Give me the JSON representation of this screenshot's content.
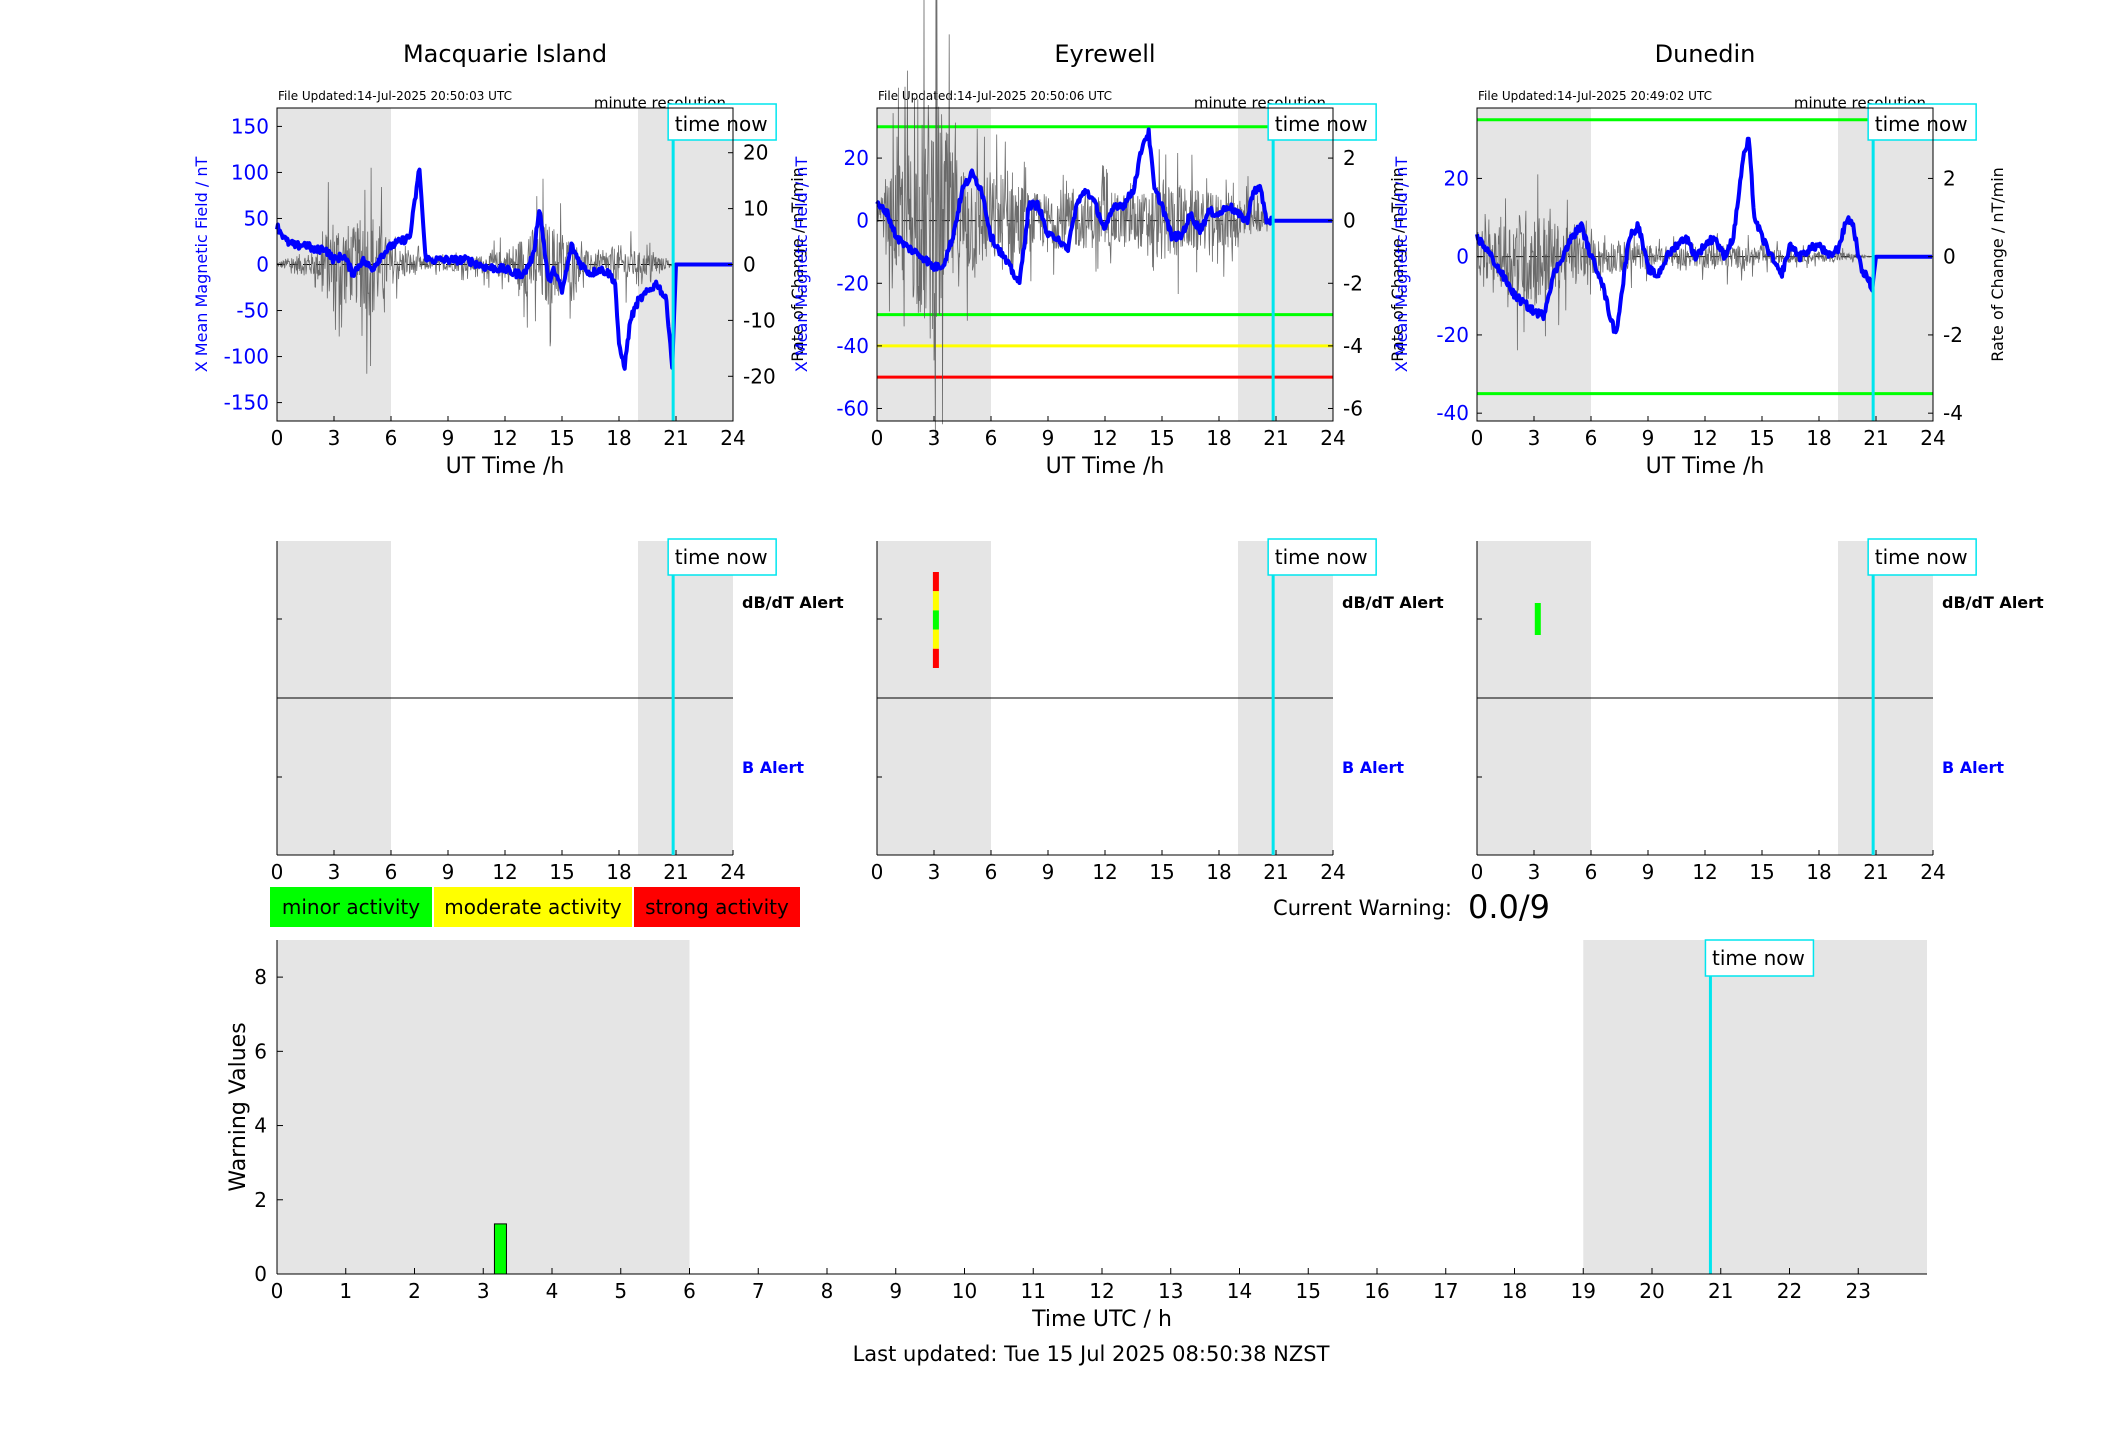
{
  "colors": {
    "x_line": "#0000ff",
    "rate_line": "#555555",
    "now_line": "#00e5ee",
    "shade": "#e5e5e5",
    "minor": "#00ff00",
    "moderate": "#ffff00",
    "strong": "#ff0000",
    "alert_label_b": "#0000ff"
  },
  "common": {
    "x_axis_label": "UT Time /h",
    "x_ticks": [
      0,
      3,
      6,
      9,
      12,
      15,
      18,
      21,
      24
    ],
    "left_axis_label": "X Mean Magnetic Field / nT",
    "right_axis_label": "Rate of Change / nT/min",
    "resolution_label": "minute resolution",
    "time_now_label": "time now",
    "time_now_hour": 20.85,
    "shade_ranges": [
      [
        0,
        6
      ],
      [
        19,
        24
      ]
    ],
    "dbdt_alert_label": "dB/dT Alert",
    "b_alert_label": "B Alert"
  },
  "stations": [
    {
      "title": "Macquarie Island",
      "file_updated": "File Updated:14-Jul-2025 20:50:03 UTC",
      "ylim_left": [
        -170,
        170
      ],
      "yticks_left": [
        -150,
        -100,
        -50,
        0,
        50,
        100,
        150
      ],
      "ylim_right": [
        -28,
        28
      ],
      "yticks_right": [
        -20,
        -10,
        0,
        10,
        20
      ],
      "threshold_lines": [],
      "series_x": [
        [
          0,
          42
        ],
        [
          0.5,
          25
        ],
        [
          1,
          20
        ],
        [
          1.5,
          22
        ],
        [
          2,
          15
        ],
        [
          2.5,
          18
        ],
        [
          3,
          5
        ],
        [
          3.5,
          10
        ],
        [
          4,
          -10
        ],
        [
          4.5,
          5
        ],
        [
          5,
          -5
        ],
        [
          5.5,
          10
        ],
        [
          6,
          20
        ],
        [
          6.5,
          25
        ],
        [
          7,
          30
        ],
        [
          7.5,
          105
        ],
        [
          7.8,
          10
        ],
        [
          8,
          5
        ],
        [
          9,
          5
        ],
        [
          10,
          5
        ],
        [
          11,
          -3
        ],
        [
          12,
          -5
        ],
        [
          12.5,
          -10
        ],
        [
          13,
          -10
        ],
        [
          13.5,
          10
        ],
        [
          13.8,
          62
        ],
        [
          14,
          30
        ],
        [
          14.3,
          -20
        ],
        [
          14.6,
          -5
        ],
        [
          15,
          -30
        ],
        [
          15.5,
          20
        ],
        [
          16,
          0
        ],
        [
          16.5,
          -10
        ],
        [
          17,
          -5
        ],
        [
          17.5,
          -10
        ],
        [
          17.8,
          -20
        ],
        [
          18,
          -90
        ],
        [
          18.3,
          -110
        ],
        [
          18.6,
          -60
        ],
        [
          19,
          -40
        ],
        [
          19.5,
          -30
        ],
        [
          20,
          -20
        ],
        [
          20.5,
          -40
        ],
        [
          20.8,
          -110
        ],
        [
          21,
          0
        ],
        [
          24,
          0
        ]
      ],
      "series_rate": {
        "amplitude_by_hour": [
          [
            0,
            1
          ],
          [
            1,
            4
          ],
          [
            2,
            5
          ],
          [
            3,
            20
          ],
          [
            4,
            15
          ],
          [
            5,
            22
          ],
          [
            6,
            8
          ],
          [
            7,
            5
          ],
          [
            8,
            2
          ],
          [
            10,
            3
          ],
          [
            11,
            4
          ],
          [
            12,
            6
          ],
          [
            13,
            12
          ],
          [
            14,
            18
          ],
          [
            15,
            14
          ],
          [
            16,
            6
          ],
          [
            17,
            4
          ],
          [
            18,
            8
          ],
          [
            19,
            5
          ],
          [
            20,
            4
          ],
          [
            20.85,
            0
          ]
        ]
      },
      "dbdt_alerts": [],
      "b_alerts": []
    },
    {
      "title": "Eyrewell",
      "file_updated": "File Updated:14-Jul-2025 20:50:06 UTC",
      "ylim_left": [
        -64,
        36
      ],
      "yticks_left": [
        -60,
        -40,
        -20,
        0,
        20
      ],
      "ylim_right": [
        -6.4,
        3.6
      ],
      "yticks_right": [
        -6,
        -4,
        -2,
        0,
        2
      ],
      "threshold_lines": [
        {
          "value": 30,
          "color": "#00ff00"
        },
        {
          "value": -30,
          "color": "#00ff00"
        },
        {
          "value": -40,
          "color": "#ffff00"
        },
        {
          "value": -50,
          "color": "#ff0000"
        }
      ],
      "series_x": [
        [
          0,
          5
        ],
        [
          0.5,
          3
        ],
        [
          1,
          -5
        ],
        [
          1.5,
          -8
        ],
        [
          2,
          -10
        ],
        [
          2.5,
          -12
        ],
        [
          3,
          -15
        ],
        [
          3.5,
          -14
        ],
        [
          4,
          -5
        ],
        [
          4.5,
          10
        ],
        [
          5,
          15
        ],
        [
          5.5,
          10
        ],
        [
          6,
          -5
        ],
        [
          6.5,
          -10
        ],
        [
          7,
          -15
        ],
        [
          7.5,
          -20
        ],
        [
          8,
          5
        ],
        [
          8.5,
          5
        ],
        [
          9,
          -5
        ],
        [
          9.5,
          -5
        ],
        [
          10,
          -10
        ],
        [
          10.5,
          5
        ],
        [
          11,
          10
        ],
        [
          11.5,
          5
        ],
        [
          12,
          -3
        ],
        [
          12.5,
          5
        ],
        [
          13,
          5
        ],
        [
          13.5,
          10
        ],
        [
          14,
          25
        ],
        [
          14.3,
          28
        ],
        [
          14.6,
          10
        ],
        [
          15,
          5
        ],
        [
          15.5,
          -5
        ],
        [
          16,
          -5
        ],
        [
          16.5,
          2
        ],
        [
          17,
          -3
        ],
        [
          17.5,
          3
        ],
        [
          18,
          2
        ],
        [
          18.5,
          5
        ],
        [
          19,
          2
        ],
        [
          19.5,
          0
        ],
        [
          19.8,
          10
        ],
        [
          20.2,
          10
        ],
        [
          20.5,
          0
        ],
        [
          24,
          0
        ]
      ],
      "series_rate": {
        "amplitude_by_hour": [
          [
            0,
            1
          ],
          [
            1,
            4
          ],
          [
            2,
            6
          ],
          [
            3,
            10
          ],
          [
            4,
            5
          ],
          [
            5,
            4
          ],
          [
            6,
            3
          ],
          [
            7,
            4
          ],
          [
            8,
            2
          ],
          [
            10,
            2
          ],
          [
            12,
            2
          ],
          [
            14,
            2
          ],
          [
            15,
            3
          ],
          [
            17,
            2
          ],
          [
            19,
            2
          ],
          [
            20,
            1
          ],
          [
            20.85,
            0
          ]
        ]
      },
      "dbdt_alerts": [
        {
          "hour": 3.1,
          "segments": [
            "#ff0000",
            "#ffff00",
            "#00ff00",
            "#ffff00",
            "#ff0000"
          ]
        }
      ],
      "b_alerts": []
    },
    {
      "title": "Dunedin",
      "file_updated": "File Updated:14-Jul-2025 20:49:02 UTC",
      "ylim_left": [
        -42,
        38
      ],
      "yticks_left": [
        -40,
        -20,
        0,
        20
      ],
      "ylim_right": [
        -4.2,
        3.8
      ],
      "yticks_right": [
        -4,
        -2,
        0,
        2
      ],
      "threshold_lines": [
        {
          "value": 35,
          "color": "#00ff00"
        },
        {
          "value": -35,
          "color": "#00ff00"
        }
      ],
      "series_x": [
        [
          0,
          5
        ],
        [
          0.5,
          2
        ],
        [
          1,
          -2
        ],
        [
          1.5,
          -6
        ],
        [
          2,
          -10
        ],
        [
          2.5,
          -12
        ],
        [
          3,
          -14
        ],
        [
          3.5,
          -15
        ],
        [
          4,
          -5
        ],
        [
          4.5,
          0
        ],
        [
          5,
          5
        ],
        [
          5.5,
          8
        ],
        [
          6,
          0
        ],
        [
          6.5,
          -5
        ],
        [
          7,
          -15
        ],
        [
          7.3,
          -20
        ],
        [
          7.6,
          -10
        ],
        [
          8,
          5
        ],
        [
          8.5,
          8
        ],
        [
          9,
          -3
        ],
        [
          9.5,
          -5
        ],
        [
          10,
          0
        ],
        [
          10.5,
          3
        ],
        [
          11,
          5
        ],
        [
          11.5,
          0
        ],
        [
          12,
          3
        ],
        [
          12.5,
          5
        ],
        [
          13,
          0
        ],
        [
          13.5,
          5
        ],
        [
          14,
          25
        ],
        [
          14.3,
          30
        ],
        [
          14.6,
          10
        ],
        [
          15,
          5
        ],
        [
          15.5,
          0
        ],
        [
          16,
          -5
        ],
        [
          16.5,
          3
        ],
        [
          17,
          0
        ],
        [
          17.5,
          2
        ],
        [
          18,
          3
        ],
        [
          18.5,
          0
        ],
        [
          19,
          2
        ],
        [
          19.5,
          10
        ],
        [
          19.8,
          8
        ],
        [
          20.2,
          -3
        ],
        [
          20.5,
          -5
        ],
        [
          20.8,
          -8
        ],
        [
          21,
          0
        ],
        [
          24,
          0
        ]
      ],
      "series_rate": {
        "amplitude_by_hour": [
          [
            0,
            1
          ],
          [
            1,
            1.5
          ],
          [
            2,
            2.5
          ],
          [
            3,
            3
          ],
          [
            4,
            2
          ],
          [
            5,
            1.5
          ],
          [
            6,
            1
          ],
          [
            7,
            1
          ],
          [
            9,
            0.7
          ],
          [
            11,
            0.5
          ],
          [
            13,
            0.8
          ],
          [
            14,
            0.6
          ],
          [
            15,
            0.5
          ],
          [
            17,
            0.3
          ],
          [
            19,
            0.3
          ],
          [
            20.85,
            0
          ]
        ]
      },
      "dbdt_alerts": [
        {
          "hour": 3.2,
          "segments": [
            "#00ff00"
          ]
        }
      ],
      "b_alerts": []
    }
  ],
  "legend": {
    "items": [
      {
        "label": "minor activity",
        "color": "#00ff00"
      },
      {
        "label": "moderate activity",
        "color": "#ffff00"
      },
      {
        "label": "strong activity",
        "color": "#ff0000"
      }
    ]
  },
  "current_warning": {
    "label": "Current Warning:",
    "value": "0.0/9"
  },
  "chart_data": {
    "type": "bar",
    "title": "",
    "xlabel": "Time UTC / h",
    "ylabel": "Warning Values",
    "xlim": [
      0,
      24
    ],
    "ylim": [
      0,
      9
    ],
    "x_ticks": [
      0,
      1,
      2,
      3,
      4,
      5,
      6,
      7,
      8,
      9,
      10,
      11,
      12,
      13,
      14,
      15,
      16,
      17,
      18,
      19,
      20,
      21,
      22,
      23
    ],
    "y_ticks": [
      0,
      2,
      4,
      6,
      8
    ],
    "shade_ranges": [
      [
        0,
        6
      ],
      [
        19,
        24
      ]
    ],
    "time_now_hour": 20.85,
    "time_now_label": "time now",
    "bars": [
      {
        "x": 3.25,
        "value": 1.35,
        "color": "#00ff00"
      }
    ]
  },
  "footer": {
    "last_updated": "Last updated: Tue 15 Jul 2025 08:50:38 NZST"
  }
}
